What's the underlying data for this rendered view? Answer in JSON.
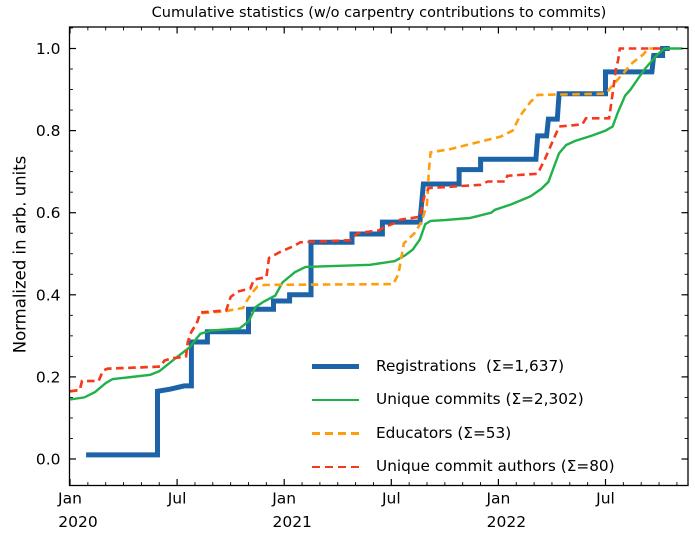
{
  "chart_data": {
    "type": "line",
    "title": "Cumulative statistics (w/o carpentry contributions to commits)",
    "ylabel": "Normalized in arb. units",
    "x_unit": "months since Jan 2020",
    "xlim": [
      0,
      34.6
    ],
    "ylim": [
      -0.07,
      1.057
    ],
    "grid": false,
    "legend_position": "lower right, no frame",
    "axes": {
      "x_major_ticks": [
        {
          "m": 0,
          "label": "Jan",
          "year": "2020"
        },
        {
          "m": 6,
          "label": "Jul",
          "year": ""
        },
        {
          "m": 12,
          "label": "Jan",
          "year": "2021"
        },
        {
          "m": 18,
          "label": "Jul",
          "year": ""
        },
        {
          "m": 24,
          "label": "Jan",
          "year": "2022"
        },
        {
          "m": 30,
          "label": "Jul",
          "year": ""
        }
      ],
      "x_minor_step": 1,
      "y_major_ticks": [
        0.0,
        0.2,
        0.4,
        0.6,
        0.8,
        1.0
      ],
      "y_major_labels": [
        "0.0",
        "0.2",
        "0.4",
        "0.6",
        "0.8",
        "1.0"
      ],
      "y_minor_step": 0.05
    },
    "series": [
      {
        "id": "registrations",
        "legend": "Registrations  (Σ=1,637)",
        "total": "1,637",
        "color": "#1d63a8",
        "style": "solid",
        "width": 5,
        "points": [
          [
            0.9,
            0.01
          ],
          [
            4.9,
            0.01
          ],
          [
            4.9,
            0.165
          ],
          [
            5.6,
            0.17
          ],
          [
            6.4,
            0.178
          ],
          [
            6.8,
            0.178
          ],
          [
            6.8,
            0.285
          ],
          [
            7.7,
            0.285
          ],
          [
            7.7,
            0.31
          ],
          [
            10.0,
            0.31
          ],
          [
            10.0,
            0.365
          ],
          [
            11.4,
            0.365
          ],
          [
            11.4,
            0.385
          ],
          [
            12.3,
            0.385
          ],
          [
            12.3,
            0.4
          ],
          [
            13.5,
            0.4
          ],
          [
            13.5,
            0.528
          ],
          [
            15.8,
            0.528
          ],
          [
            15.8,
            0.548
          ],
          [
            17.5,
            0.548
          ],
          [
            17.5,
            0.577
          ],
          [
            19.6,
            0.577
          ],
          [
            19.8,
            0.67
          ],
          [
            21.8,
            0.67
          ],
          [
            21.8,
            0.705
          ],
          [
            23.0,
            0.705
          ],
          [
            23.0,
            0.73
          ],
          [
            26.1,
            0.73
          ],
          [
            26.2,
            0.787
          ],
          [
            26.7,
            0.787
          ],
          [
            26.8,
            0.828
          ],
          [
            27.3,
            0.828
          ],
          [
            27.4,
            0.89
          ],
          [
            30.0,
            0.89
          ],
          [
            30.0,
            0.943
          ],
          [
            32.6,
            0.943
          ],
          [
            32.7,
            0.983
          ],
          [
            33.2,
            0.983
          ],
          [
            33.2,
            1.0
          ],
          [
            33.6,
            1.0
          ]
        ]
      },
      {
        "id": "unique-commits",
        "legend": "Unique commits (Σ=2,302)",
        "total": "2,302",
        "color": "#21b14a",
        "style": "solid",
        "width": 2.4,
        "points": [
          [
            0,
            0.145
          ],
          [
            0.8,
            0.15
          ],
          [
            1.4,
            0.163
          ],
          [
            2.0,
            0.185
          ],
          [
            2.4,
            0.195
          ],
          [
            3.1,
            0.198
          ],
          [
            4.5,
            0.205
          ],
          [
            5.0,
            0.214
          ],
          [
            5.9,
            0.245
          ],
          [
            6.7,
            0.272
          ],
          [
            7.3,
            0.305
          ],
          [
            7.9,
            0.313
          ],
          [
            9.5,
            0.318
          ],
          [
            10.0,
            0.335
          ],
          [
            10.4,
            0.37
          ],
          [
            10.8,
            0.382
          ],
          [
            11.5,
            0.398
          ],
          [
            11.9,
            0.43
          ],
          [
            12.6,
            0.455
          ],
          [
            13.2,
            0.468
          ],
          [
            16.8,
            0.473
          ],
          [
            18.2,
            0.482
          ],
          [
            18.8,
            0.497
          ],
          [
            19.2,
            0.51
          ],
          [
            19.6,
            0.535
          ],
          [
            19.9,
            0.572
          ],
          [
            20.2,
            0.58
          ],
          [
            21.0,
            0.582
          ],
          [
            22.4,
            0.587
          ],
          [
            23.6,
            0.6
          ],
          [
            23.8,
            0.607
          ],
          [
            24.7,
            0.62
          ],
          [
            25.8,
            0.64
          ],
          [
            26.4,
            0.658
          ],
          [
            26.8,
            0.675
          ],
          [
            27.1,
            0.71
          ],
          [
            27.4,
            0.745
          ],
          [
            27.8,
            0.765
          ],
          [
            28.3,
            0.775
          ],
          [
            29.2,
            0.787
          ],
          [
            30.0,
            0.8
          ],
          [
            30.4,
            0.81
          ],
          [
            30.7,
            0.845
          ],
          [
            31.1,
            0.885
          ],
          [
            31.4,
            0.9
          ],
          [
            31.8,
            0.925
          ],
          [
            32.2,
            0.95
          ],
          [
            32.5,
            0.965
          ],
          [
            32.9,
            0.985
          ],
          [
            33.3,
            1.0
          ],
          [
            34.3,
            1.0
          ]
        ]
      },
      {
        "id": "educators",
        "legend": "Educators (Σ=53)",
        "total": "53",
        "color": "#ff9e0d",
        "style": "dashed",
        "width": 2.6,
        "points": [
          [
            0,
            0.165
          ],
          [
            0.55,
            0.168
          ],
          [
            0.67,
            0.19
          ],
          [
            1.6,
            0.19
          ],
          [
            1.85,
            0.215
          ],
          [
            2.1,
            0.22
          ],
          [
            5.05,
            0.225
          ],
          [
            5.3,
            0.24
          ],
          [
            5.7,
            0.245
          ],
          [
            6.5,
            0.25
          ],
          [
            6.6,
            0.285
          ],
          [
            6.8,
            0.31
          ],
          [
            7.1,
            0.33
          ],
          [
            7.3,
            0.355
          ],
          [
            8.7,
            0.36
          ],
          [
            9.7,
            0.368
          ],
          [
            9.9,
            0.385
          ],
          [
            10.2,
            0.405
          ],
          [
            10.5,
            0.42
          ],
          [
            10.9,
            0.424
          ],
          [
            18.1,
            0.426
          ],
          [
            18.4,
            0.45
          ],
          [
            18.6,
            0.5
          ],
          [
            18.7,
            0.525
          ],
          [
            19.3,
            0.55
          ],
          [
            19.7,
            0.578
          ],
          [
            20.0,
            0.62
          ],
          [
            20.1,
            0.7
          ],
          [
            20.2,
            0.747
          ],
          [
            21.3,
            0.755
          ],
          [
            22.7,
            0.77
          ],
          [
            24.1,
            0.785
          ],
          [
            24.8,
            0.8
          ],
          [
            25.2,
            0.835
          ],
          [
            25.8,
            0.87
          ],
          [
            26.2,
            0.887
          ],
          [
            30.0,
            0.89
          ],
          [
            30.4,
            0.91
          ],
          [
            31.0,
            0.94
          ],
          [
            31.5,
            0.965
          ],
          [
            32.1,
            0.985
          ],
          [
            32.4,
            1.0
          ],
          [
            33.1,
            1.0
          ]
        ]
      },
      {
        "id": "unique-commit-authors",
        "legend": "Unique commit authors (Σ=80)",
        "total": "80",
        "color": "#f5391e",
        "style": "dashed",
        "width": 2.6,
        "points": [
          [
            0,
            0.165
          ],
          [
            0.55,
            0.168
          ],
          [
            0.67,
            0.19
          ],
          [
            1.6,
            0.19
          ],
          [
            1.85,
            0.215
          ],
          [
            2.1,
            0.22
          ],
          [
            5.05,
            0.225
          ],
          [
            5.3,
            0.24
          ],
          [
            5.7,
            0.245
          ],
          [
            6.5,
            0.25
          ],
          [
            6.6,
            0.285
          ],
          [
            6.8,
            0.31
          ],
          [
            7.1,
            0.33
          ],
          [
            7.3,
            0.357
          ],
          [
            8.75,
            0.362
          ],
          [
            9.0,
            0.395
          ],
          [
            9.4,
            0.408
          ],
          [
            10.1,
            0.415
          ],
          [
            10.3,
            0.437
          ],
          [
            11.0,
            0.443
          ],
          [
            11.15,
            0.49
          ],
          [
            11.8,
            0.505
          ],
          [
            12.6,
            0.52
          ],
          [
            12.9,
            0.528
          ],
          [
            15.7,
            0.533
          ],
          [
            16.1,
            0.55
          ],
          [
            17.3,
            0.557
          ],
          [
            17.6,
            0.565
          ],
          [
            18.2,
            0.575
          ],
          [
            18.5,
            0.583
          ],
          [
            19.6,
            0.59
          ],
          [
            19.85,
            0.64
          ],
          [
            20.1,
            0.66
          ],
          [
            23.0,
            0.668
          ],
          [
            23.4,
            0.676
          ],
          [
            24.4,
            0.676
          ],
          [
            24.5,
            0.69
          ],
          [
            26.2,
            0.695
          ],
          [
            26.6,
            0.73
          ],
          [
            27.0,
            0.77
          ],
          [
            27.4,
            0.81
          ],
          [
            28.7,
            0.815
          ],
          [
            28.9,
            0.83
          ],
          [
            30.2,
            0.83
          ],
          [
            30.4,
            0.89
          ],
          [
            30.6,
            0.955
          ],
          [
            30.7,
            0.97
          ],
          [
            30.8,
            1.0
          ],
          [
            33.3,
            1.0
          ]
        ]
      }
    ]
  }
}
